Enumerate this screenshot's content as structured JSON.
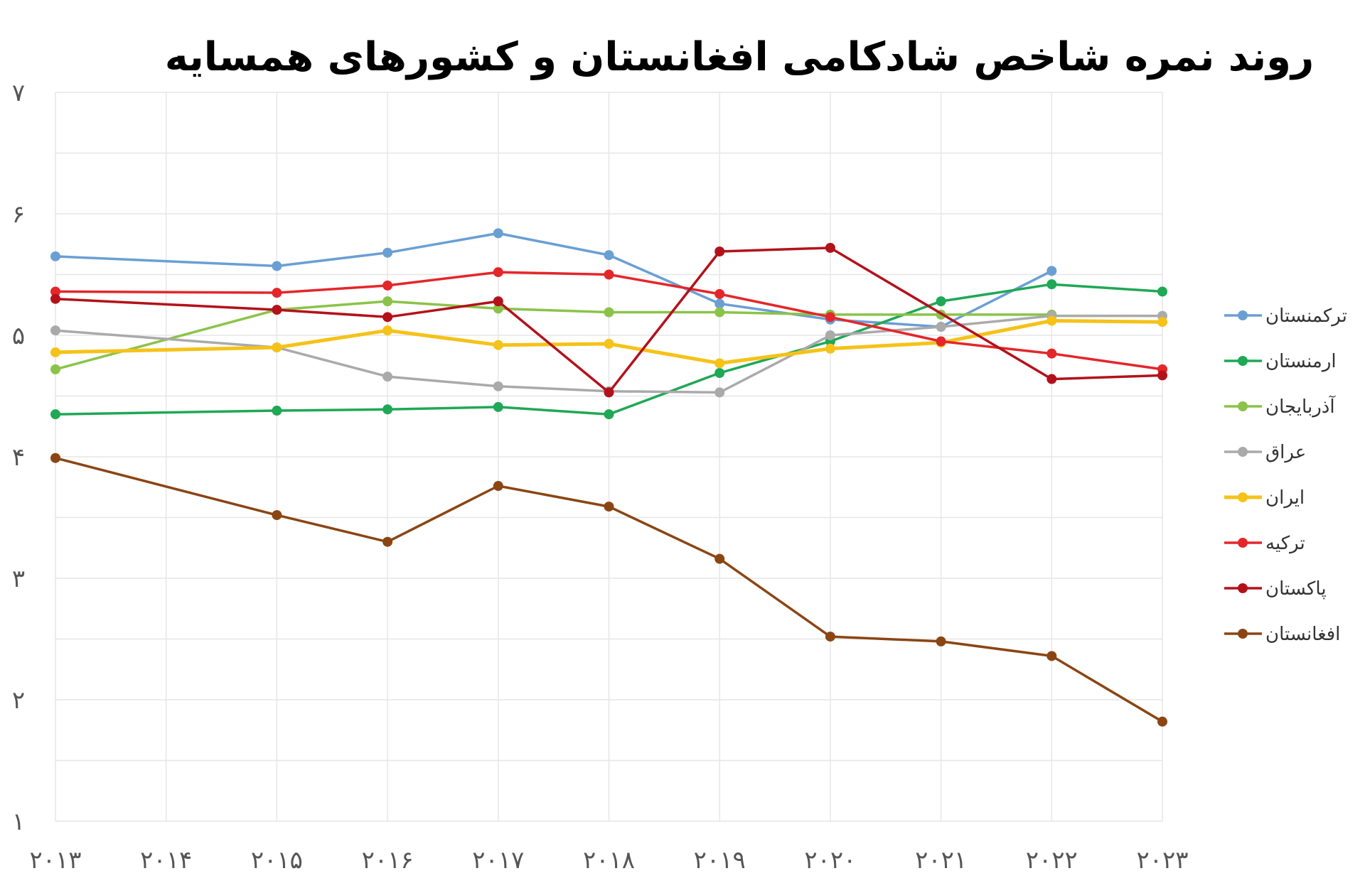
{
  "chart_data": {
    "type": "line",
    "title": "روند نمره شاخص شادکامی افغانستان و کشورهای همسایه",
    "xlabel": "",
    "ylabel": "",
    "x": [
      2013,
      2014,
      2015,
      2016,
      2017,
      2018,
      2019,
      2020,
      2021,
      2022,
      2023
    ],
    "x_tick_labels": [
      "۲۰۱۳",
      "۲۰۱۴",
      "۲۰۱۵",
      "۲۰۱۶",
      "۲۰۱۷",
      "۲۰۱۸",
      "۲۰۱۹",
      "۲۰۲۰",
      "۲۰۲۱",
      "۲۰۲۲",
      "۲۰۲۳"
    ],
    "y_ticks": [
      1,
      2,
      3,
      4,
      5,
      6,
      7
    ],
    "y_tick_labels": [
      "۱",
      "۲",
      "۳",
      "۴",
      "۵",
      "۶",
      "۷"
    ],
    "ylim": [
      1,
      7
    ],
    "grid": true,
    "legend_position": "right",
    "series": [
      {
        "name": "ترکمنستان",
        "color": "#6a9fd4",
        "values": [
          5.65,
          null,
          5.57,
          5.68,
          5.84,
          5.66,
          5.26,
          5.13,
          5.07,
          5.53,
          null
        ]
      },
      {
        "name": "ارمنستان",
        "color": "#1fa855",
        "values": [
          4.35,
          null,
          4.38,
          4.39,
          4.41,
          4.35,
          4.69,
          4.95,
          5.28,
          5.42,
          5.36
        ]
      },
      {
        "name": "آذربایجان",
        "color": "#8bc34a",
        "values": [
          4.72,
          null,
          5.21,
          5.28,
          5.22,
          5.19,
          5.19,
          5.17,
          5.17,
          5.17,
          null
        ]
      },
      {
        "name": "عراق",
        "color": "#aaaaaa",
        "values": [
          5.04,
          null,
          4.9,
          4.66,
          4.58,
          4.54,
          4.53,
          5.0,
          5.07,
          5.16,
          5.16
        ]
      },
      {
        "name": "ایران",
        "color": "#f5c218",
        "width": 5,
        "values": [
          4.86,
          null,
          4.9,
          5.04,
          4.92,
          4.93,
          4.77,
          4.89,
          4.94,
          5.12,
          5.11
        ]
      },
      {
        "name": "ترکیه",
        "color": "#e4262b",
        "values": [
          5.36,
          null,
          5.35,
          5.41,
          5.52,
          5.5,
          5.34,
          5.15,
          4.95,
          4.85,
          4.72
        ]
      },
      {
        "name": "پاکستان",
        "color": "#b3121b",
        "values": [
          5.3,
          null,
          5.21,
          5.15,
          5.28,
          4.53,
          5.69,
          5.72,
          null,
          4.64,
          4.67
        ]
      },
      {
        "name": "افغانستان",
        "color": "#8b4513",
        "values": [
          3.99,
          null,
          3.52,
          3.3,
          3.76,
          3.59,
          3.16,
          2.52,
          2.48,
          2.36,
          1.82
        ]
      }
    ]
  }
}
